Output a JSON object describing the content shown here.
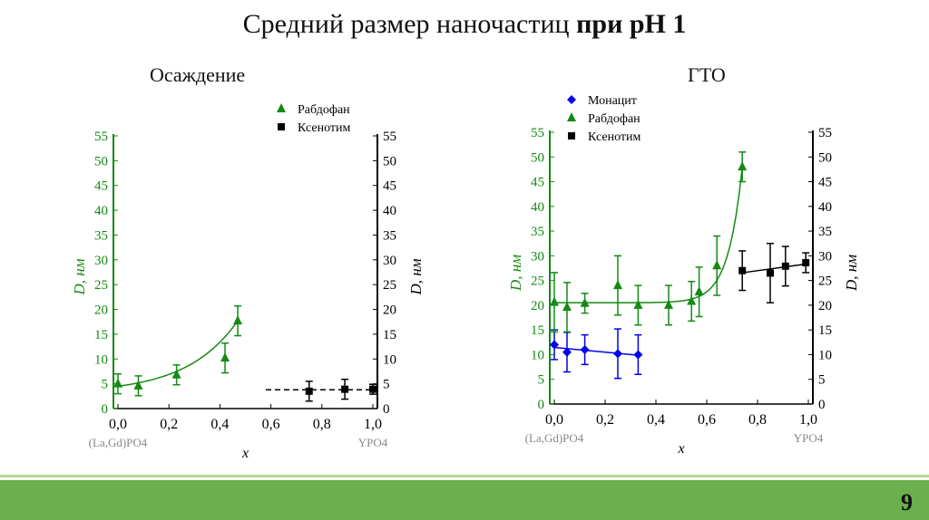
{
  "title_normal": "Средний размер наночастиц ",
  "title_bold": "при pH 1",
  "page_number": "9",
  "chart_data": [
    {
      "type": "scatter",
      "title": "Осаждение",
      "xlabel": "x",
      "ylabel": "D, нм",
      "ylabel_right": "D, нм",
      "xlim": [
        0,
        1
      ],
      "ylim": [
        0,
        55
      ],
      "xticks": [
        "0,0",
        "0,2",
        "0,4",
        "0,6",
        "0,8",
        "1,0"
      ],
      "yticks": [
        "0",
        "5",
        "10",
        "15",
        "20",
        "25",
        "30",
        "35",
        "40",
        "45",
        "50",
        "55"
      ],
      "x_left_label": "(La,Gd)PO4",
      "x_right_label": "YPO4",
      "legend_position": "top-right",
      "series": [
        {
          "name": "Рабдофан",
          "color": "#138a13",
          "marker": "triangle",
          "fit": "exp",
          "x": [
            0,
            0.08,
            0.23,
            0.42,
            0.47
          ],
          "y": [
            5,
            4.6,
            6.8,
            10.2,
            17.7
          ],
          "err": [
            2,
            2,
            2,
            3,
            3
          ]
        },
        {
          "name": "Ксенотим",
          "color": "#000000",
          "marker": "square",
          "fit": "dashed-const",
          "fit_value": 3.8,
          "fit_range": [
            0.58,
            1.0
          ],
          "x": [
            0.75,
            0.89,
            1.0
          ],
          "y": [
            3.5,
            3.9,
            3.9
          ],
          "err": [
            2,
            2,
            1
          ]
        }
      ]
    },
    {
      "type": "scatter",
      "title": "ГТО",
      "xlabel": "x",
      "ylabel": "D, нм",
      "ylabel_right": "D, нм",
      "xlim": [
        0,
        1
      ],
      "ylim": [
        0,
        55
      ],
      "xticks": [
        "0,0",
        "0,2",
        "0,4",
        "0,6",
        "0,8",
        "1,0"
      ],
      "yticks": [
        "0",
        "5",
        "10",
        "15",
        "20",
        "25",
        "30",
        "35",
        "40",
        "45",
        "50",
        "55"
      ],
      "x_left_label": "(La,Gd)PO4",
      "x_right_label": "YPO4",
      "legend_position": "top-left",
      "series": [
        {
          "name": "Монацит",
          "color": "#0000ee",
          "marker": "diamond",
          "fit": "linear",
          "x": [
            0,
            0.05,
            0.12,
            0.25,
            0.33
          ],
          "y": [
            12,
            10.5,
            11,
            10.2,
            10
          ],
          "err": [
            3,
            4,
            3,
            5,
            4
          ]
        },
        {
          "name": "Рабдофан",
          "color": "#138a13",
          "marker": "triangle",
          "fit": "exp",
          "x": [
            0,
            0.05,
            0.12,
            0.25,
            0.33,
            0.45,
            0.54,
            0.57,
            0.64,
            0.74
          ],
          "y": [
            20.6,
            19.6,
            20.4,
            24,
            20,
            20,
            20.8,
            22.7,
            28,
            48
          ],
          "err": [
            6,
            5,
            2,
            6,
            4,
            4,
            4,
            5,
            6,
            3
          ]
        },
        {
          "name": "Ксенотим",
          "color": "#000000",
          "marker": "square",
          "fit": "linear",
          "x": [
            0.74,
            0.85,
            0.91,
            0.99
          ],
          "y": [
            27,
            26.5,
            27.9,
            28.6
          ],
          "err": [
            4,
            6,
            4,
            2
          ]
        }
      ]
    }
  ]
}
